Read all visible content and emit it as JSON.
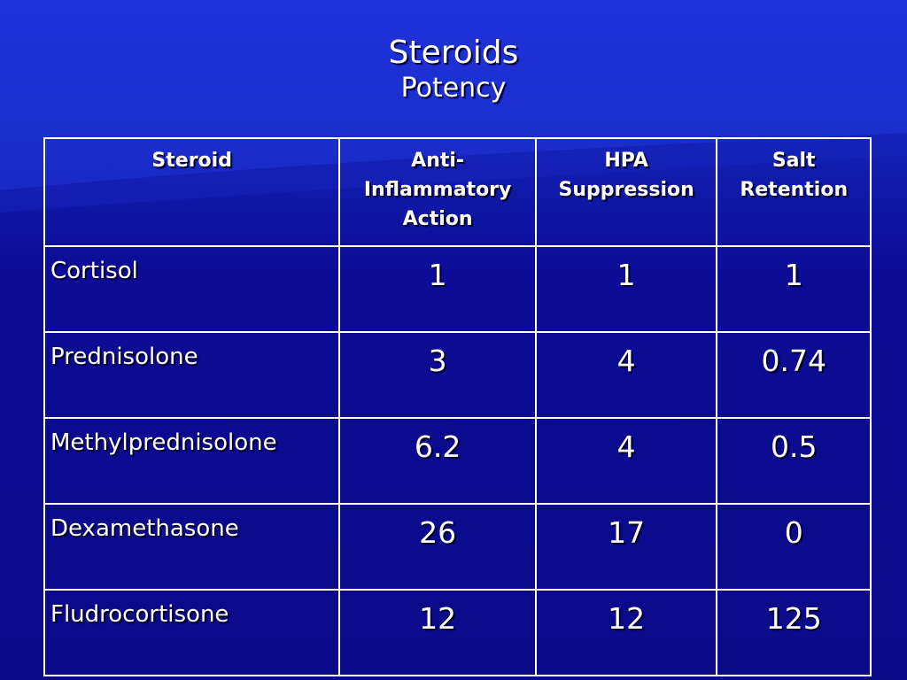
{
  "title": "Steroids",
  "subtitle": "Potency",
  "table": {
    "headers": [
      "Steroid",
      "Anti-\nInflammatory\nAction",
      "HPA\nSuppression",
      "Salt\nRetention"
    ],
    "rows": [
      {
        "name": "Cortisol",
        "values": [
          "1",
          "1",
          "1"
        ]
      },
      {
        "name": "Prednisolone",
        "values": [
          "3",
          "4",
          "0.74"
        ]
      },
      {
        "name": "Methylprednisolone",
        "values": [
          "6.2",
          "4",
          "0.5"
        ]
      },
      {
        "name": "Dexamethasone",
        "values": [
          "26",
          "17",
          "0"
        ]
      },
      {
        "name": "Fludrocortisone",
        "values": [
          "12",
          "12",
          "125"
        ]
      }
    ]
  },
  "colors": {
    "background": "#0a0a8a",
    "text": "#ffffff",
    "border": "#ffffff"
  }
}
